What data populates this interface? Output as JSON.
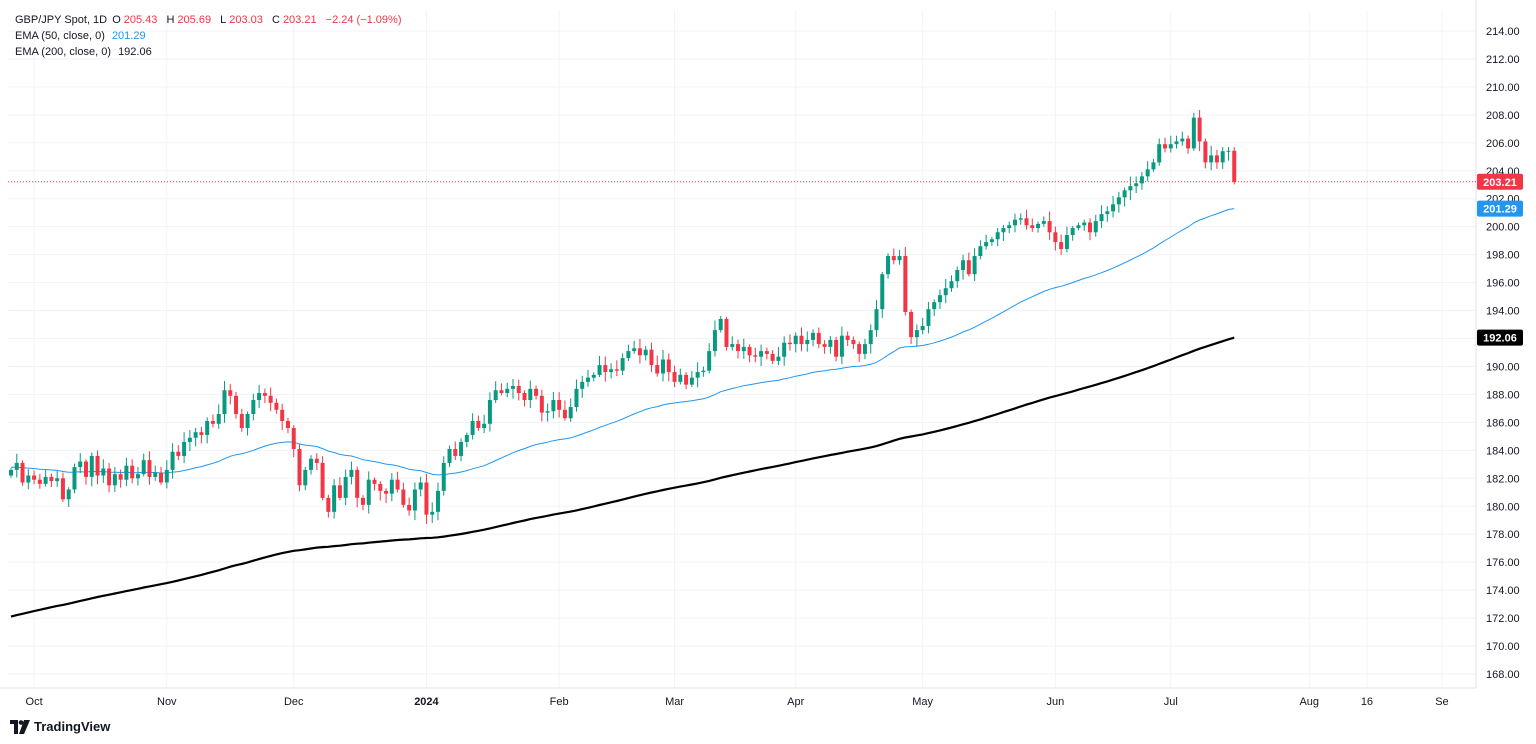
{
  "legend": {
    "symbol": "GBP/JPY Spot, 1D",
    "o_label": "O",
    "o_value": "205.43",
    "h_label": "H",
    "h_value": "205.69",
    "l_label": "L",
    "l_value": "203.03",
    "c_label": "C",
    "c_value": "203.21",
    "change": "−2.24 (−1.09%)",
    "ema50_label": "EMA (50, close, 0)",
    "ema50_value": "201.29",
    "ema200_label": "EMA (200, close, 0)",
    "ema200_value": "192.06"
  },
  "brand": {
    "name": "TradingView"
  },
  "colors": {
    "up": "#089981",
    "down": "#f23645",
    "ema50": "#2196f3",
    "ema200": "#000000",
    "grid": "#f0f3fa",
    "axis_text": "#131722"
  },
  "chart_data": {
    "type": "candlestick",
    "title": "GBP/JPY Spot, 1D",
    "ylim": [
      167.0,
      215.5
    ],
    "y_ticks": [
      "168.00",
      "170.00",
      "172.00",
      "174.00",
      "176.00",
      "178.00",
      "180.00",
      "182.00",
      "184.00",
      "186.00",
      "188.00",
      "190.00",
      "192.00",
      "194.00",
      "196.00",
      "198.00",
      "200.00",
      "202.00",
      "204.00",
      "206.00",
      "208.00",
      "210.00",
      "212.00",
      "214.00"
    ],
    "x_ticks": [
      {
        "label": "Oct",
        "day": 4,
        "bold": false
      },
      {
        "label": "Nov",
        "day": 27,
        "bold": false
      },
      {
        "label": "Dec",
        "day": 49,
        "bold": false
      },
      {
        "label": "2024",
        "day": 72,
        "bold": true
      },
      {
        "label": "Feb",
        "day": 95,
        "bold": false
      },
      {
        "label": "Mar",
        "day": 115,
        "bold": false
      },
      {
        "label": "Apr",
        "day": 136,
        "bold": false
      },
      {
        "label": "May",
        "day": 158,
        "bold": false
      },
      {
        "label": "Jun",
        "day": 181,
        "bold": false
      },
      {
        "label": "Jul",
        "day": 201,
        "bold": false
      },
      {
        "label": "Aug",
        "day": 225,
        "bold": false
      },
      {
        "label": "16",
        "day": 235,
        "bold": false
      },
      {
        "label": "Se",
        "day": 248,
        "bold": false
      }
    ],
    "closes": [
      182.6,
      183.1,
      181.7,
      182.2,
      181.9,
      181.6,
      182.1,
      181.8,
      182.0,
      180.5,
      181.2,
      182.8,
      183.2,
      182.1,
      183.6,
      182.2,
      182.7,
      181.5,
      182.3,
      181.9,
      182.9,
      182.0,
      182.3,
      183.3,
      182.1,
      182.4,
      181.7,
      182.6,
      183.9,
      183.6,
      184.6,
      184.9,
      185.3,
      185.1,
      186.1,
      185.9,
      186.6,
      188.3,
      187.9,
      186.6,
      185.6,
      186.6,
      187.6,
      188.1,
      187.9,
      187.4,
      186.9,
      186.1,
      185.6,
      184.1,
      181.5,
      182.6,
      183.4,
      183.1,
      180.6,
      179.6,
      181.5,
      180.6,
      182.1,
      182.6,
      180.6,
      180.1,
      181.9,
      181.6,
      181.1,
      180.9,
      181.9,
      181.2,
      180.1,
      179.7,
      181.2,
      181.7,
      179.4,
      179.6,
      181.1,
      183.1,
      184.1,
      183.6,
      184.6,
      185.1,
      186.1,
      185.6,
      185.9,
      187.6,
      188.3,
      188.1,
      188.4,
      188.6,
      188.1,
      187.6,
      188.4,
      187.9,
      186.7,
      186.8,
      187.6,
      186.9,
      186.3,
      187.1,
      188.4,
      188.9,
      189.2,
      189.4,
      190.1,
      189.6,
      189.8,
      189.7,
      190.6,
      191.1,
      191.3,
      190.8,
      191.2,
      190.1,
      189.5,
      190.5,
      189.6,
      188.9,
      189.4,
      188.7,
      189.2,
      189.6,
      189.7,
      191.1,
      192.6,
      193.4,
      191.4,
      191.6,
      191.1,
      191.4,
      190.8,
      190.7,
      191.1,
      190.9,
      190.4,
      190.7,
      191.7,
      191.6,
      192.2,
      191.6,
      191.9,
      192.4,
      191.6,
      191.4,
      191.9,
      190.7,
      192.2,
      191.9,
      191.6,
      190.9,
      191.6,
      192.6,
      194.1,
      196.6,
      197.9,
      197.6,
      197.9,
      193.9,
      192.1,
      192.6,
      192.9,
      194.1,
      194.6,
      195.1,
      195.6,
      196.1,
      196.9,
      197.6,
      196.6,
      197.9,
      198.6,
      198.9,
      199.1,
      199.6,
      199.9,
      200.1,
      200.5,
      200.6,
      200.1,
      199.9,
      200.2,
      200.4,
      199.6,
      198.9,
      198.4,
      199.4,
      199.9,
      200.1,
      200.3,
      199.6,
      200.4,
      200.9,
      201.1,
      201.6,
      202.1,
      202.6,
      202.9,
      203.1,
      203.6,
      204.1,
      204.6,
      205.9,
      205.6,
      205.9,
      206.1,
      206.3,
      205.6,
      207.8,
      206.1,
      204.6,
      205.1,
      204.6,
      205.4,
      205.43,
      203.21
    ],
    "last_candle": {
      "open": 205.43,
      "high": 205.69,
      "low": 203.03,
      "close": 203.21
    },
    "ema50_last": 201.29,
    "ema200_last": 192.06,
    "price_labels": [
      {
        "label": "203.21",
        "value": 203.21,
        "kind": "last"
      },
      {
        "label": "201.29",
        "value": 201.29,
        "kind": "ema50"
      },
      {
        "label": "192.06",
        "value": 192.06,
        "kind": "ema200"
      }
    ]
  }
}
